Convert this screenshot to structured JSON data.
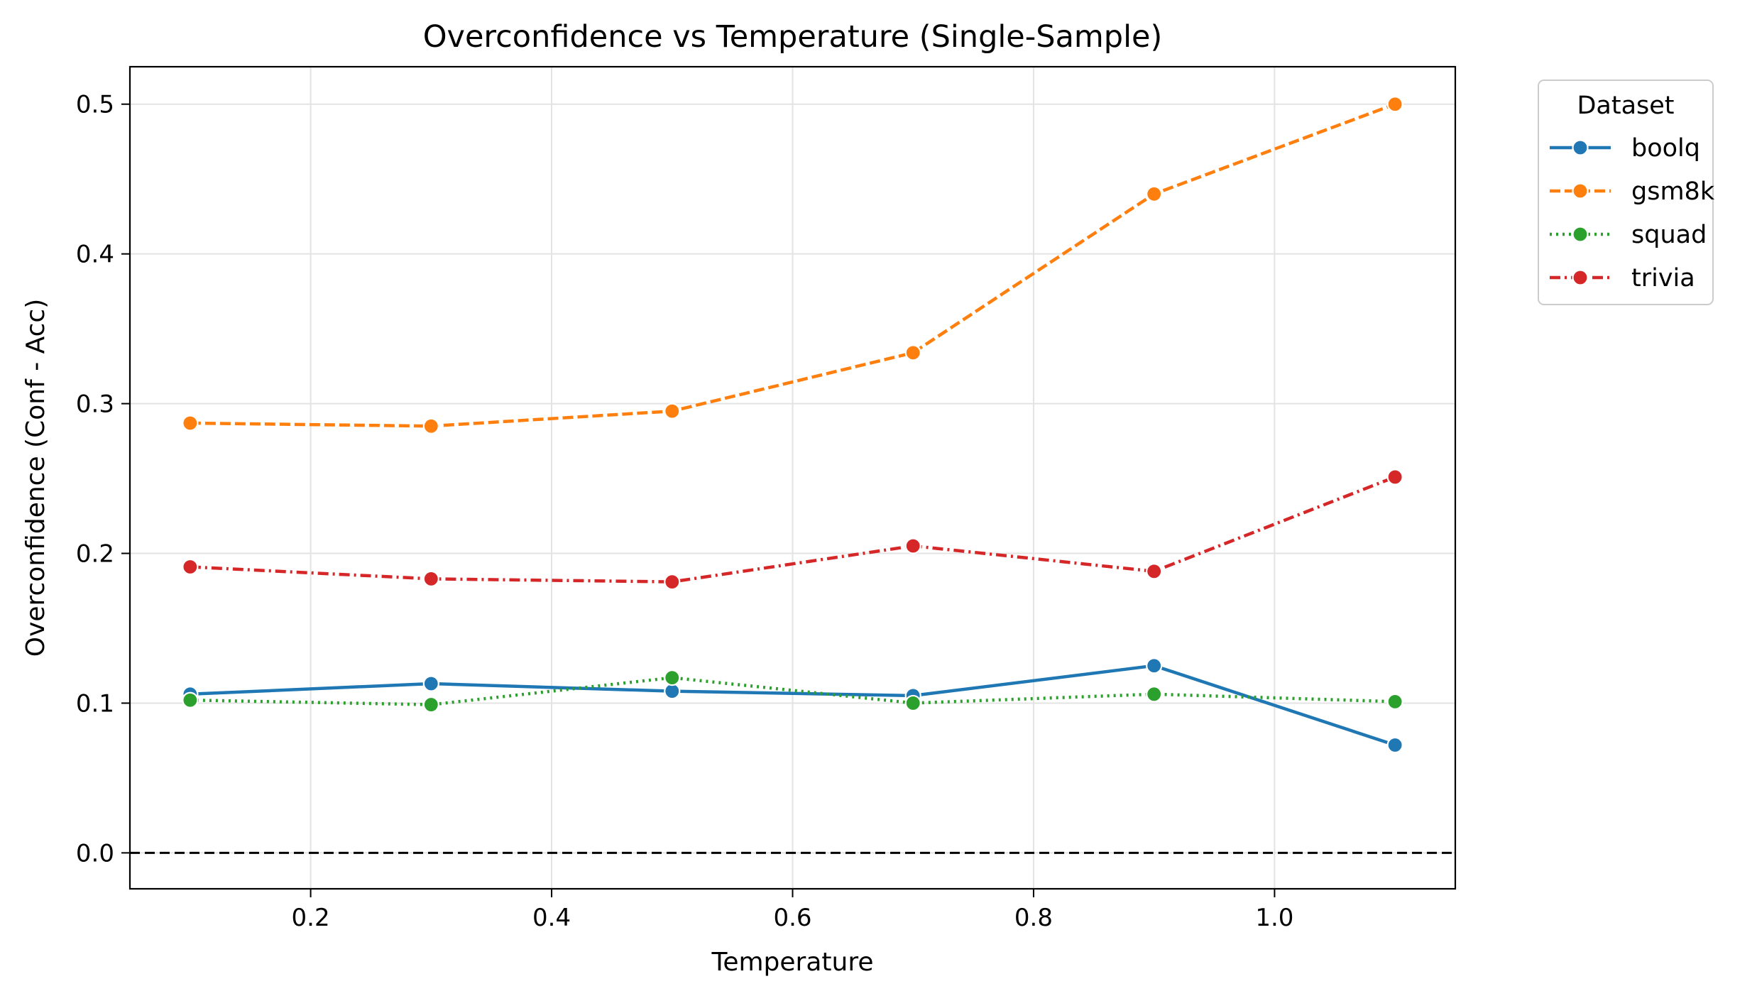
{
  "chart_data": {
    "type": "line",
    "title": "Overconfidence vs Temperature (Single-Sample)",
    "xlabel": "Temperature",
    "ylabel": "Overconfidence (Conf - Acc)",
    "xlim": [
      0.05,
      1.15
    ],
    "ylim": [
      -0.024,
      0.525
    ],
    "xticks": [
      0.2,
      0.4,
      0.6,
      0.8,
      1.0
    ],
    "xtick_labels": [
      "0.2",
      "0.4",
      "0.6",
      "0.8",
      "1.0"
    ],
    "yticks": [
      0.0,
      0.1,
      0.2,
      0.3,
      0.4,
      0.5
    ],
    "ytick_labels": [
      "0.0",
      "0.1",
      "0.2",
      "0.3",
      "0.4",
      "0.5"
    ],
    "grid": true,
    "reference_line": {
      "y": 0.0,
      "style": "dashed",
      "color": "#000000"
    },
    "legend": {
      "title": "Dataset",
      "placement": "outside-upper-right"
    },
    "x": [
      0.1,
      0.3,
      0.5,
      0.7,
      0.9,
      1.1
    ],
    "series": [
      {
        "name": "boolq",
        "color": "#1f77b4",
        "linestyle": "solid",
        "values": [
          0.106,
          0.113,
          0.108,
          0.105,
          0.125,
          0.072
        ]
      },
      {
        "name": "gsm8k",
        "color": "#ff7f0e",
        "linestyle": "dashed",
        "values": [
          0.287,
          0.285,
          0.295,
          0.334,
          0.44,
          0.5
        ]
      },
      {
        "name": "squad",
        "color": "#2ca02c",
        "linestyle": "dotted",
        "values": [
          0.102,
          0.099,
          0.117,
          0.1,
          0.106,
          0.101
        ]
      },
      {
        "name": "trivia",
        "color": "#d62728",
        "linestyle": "dashdot",
        "values": [
          0.191,
          0.183,
          0.181,
          0.205,
          0.188,
          0.251
        ]
      }
    ]
  }
}
